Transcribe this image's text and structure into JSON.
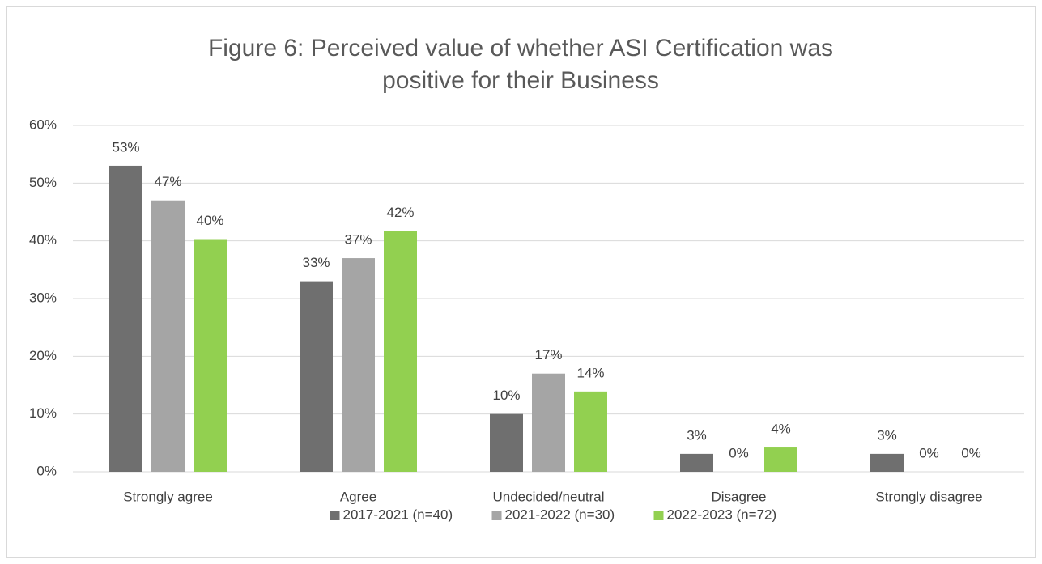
{
  "chart_data": {
    "type": "bar",
    "title": "Figure 6: Perceived value of whether ASI Certification was positive for their Business",
    "categories": [
      "Strongly agree",
      "Agree",
      "Undecided/neutral",
      "Disagree",
      "Strongly disagree"
    ],
    "series": [
      {
        "name": "2017-2021 (n=40)",
        "color": "#6f6f6f",
        "values": [
          53,
          33,
          10,
          3.1,
          3.1
        ],
        "value_labels": [
          "53%",
          "33%",
          "10%",
          "3%",
          "3%"
        ]
      },
      {
        "name": "2021-2022 (n=30)",
        "color": "#a5a5a5",
        "values": [
          47,
          37,
          17,
          0,
          0
        ],
        "value_labels": [
          "47%",
          "37%",
          "17%",
          "0%",
          "0%"
        ]
      },
      {
        "name": "2022-2023 (n=72)",
        "color": "#92d050",
        "values": [
          40.3,
          41.7,
          13.9,
          4.2,
          0
        ],
        "value_labels": [
          "40%",
          "42%",
          "14%",
          "4%",
          "0%"
        ]
      }
    ],
    "ylim": [
      0,
      60
    ],
    "yticks": [
      {
        "value": 0,
        "label": "0%"
      },
      {
        "value": 10,
        "label": "10%"
      },
      {
        "value": 20,
        "label": "20%"
      },
      {
        "value": 30,
        "label": "30%"
      },
      {
        "value": 40,
        "label": "40%"
      },
      {
        "value": 50,
        "label": "50%"
      },
      {
        "value": 60,
        "label": "60%"
      }
    ],
    "grid": true,
    "legend": "bottom"
  }
}
